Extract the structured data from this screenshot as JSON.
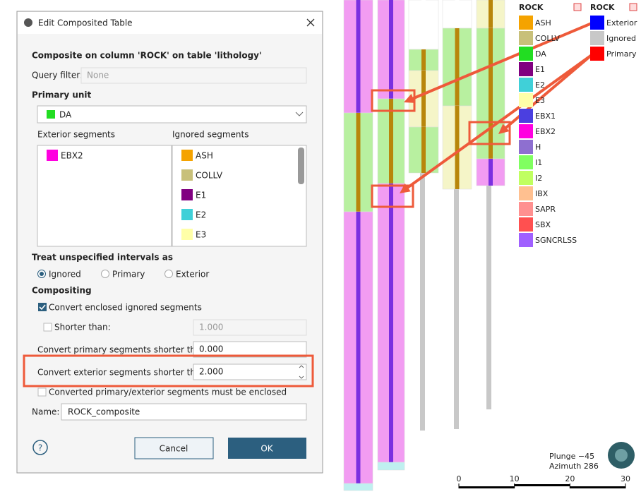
{
  "dialog": {
    "title": "Edit Composited Table",
    "heading": "Composite on column 'ROCK' on table 'lithology'",
    "query_filter": {
      "label": "Query filter:",
      "placeholder": "None"
    },
    "primary_unit": {
      "label": "Primary unit",
      "value": "DA",
      "color": "#22dd22"
    },
    "exterior_segments": {
      "label": "Exterior segments",
      "items": [
        {
          "label": "EBX2",
          "color": "#ff00e0"
        }
      ]
    },
    "ignored_segments": {
      "label": "Ignored segments",
      "items": [
        {
          "label": "ASH",
          "color": "#f5a300"
        },
        {
          "label": "COLLV",
          "color": "#c8c07a"
        },
        {
          "label": "E1",
          "color": "#800080"
        },
        {
          "label": "E2",
          "color": "#40d0d8"
        },
        {
          "label": "E3",
          "color": "#ffffa8"
        }
      ]
    },
    "treat_label": "Treat unspecified intervals as",
    "treat_options": [
      "Ignored",
      "Primary",
      "Exterior"
    ],
    "compositing_label": "Compositing",
    "convert_enclosed": "Convert enclosed ignored segments",
    "shorter_than": {
      "label": "Shorter than:",
      "value": "1.000"
    },
    "convert_primary": {
      "label": "Convert primary segments shorter than:",
      "value": "0.000"
    },
    "convert_exterior": {
      "label": "Convert exterior segments shorter than:",
      "value": "2.000"
    },
    "must_be_enclosed": "Converted primary/exterior segments must be enclosed",
    "name": {
      "label": "Name:",
      "value": "ROCK_composite"
    },
    "help": "?",
    "cancel": "Cancel",
    "ok": "OK"
  },
  "legend_rock": {
    "title": "ROCK",
    "items": [
      {
        "label": "ASH",
        "color": "#f5a300"
      },
      {
        "label": "COLLV",
        "color": "#c8c07a"
      },
      {
        "label": "DA",
        "color": "#22dd22"
      },
      {
        "label": "E1",
        "color": "#800080"
      },
      {
        "label": "E2",
        "color": "#40d0d8"
      },
      {
        "label": "E3",
        "color": "#ffffa8"
      },
      {
        "label": "EBX1",
        "color": "#4b3fe0"
      },
      {
        "label": "EBX2",
        "color": "#ff00e0"
      },
      {
        "label": "H",
        "color": "#8e6fd0"
      },
      {
        "label": "I1",
        "color": "#80ff60"
      },
      {
        "label": "I2",
        "color": "#c0ff60"
      },
      {
        "label": "IBX",
        "color": "#ffc090"
      },
      {
        "label": "SAPR",
        "color": "#ff9090"
      },
      {
        "label": "SBX",
        "color": "#ff5050"
      },
      {
        "label": "SGNCRLSS",
        "color": "#a060ff"
      }
    ]
  },
  "legend_composite": {
    "title": "ROCK",
    "items": [
      {
        "label": "Exterior",
        "color": "#0000ff"
      },
      {
        "label": "Ignored",
        "color": "#c8c8c8"
      },
      {
        "label": "Primary",
        "color": "#ff0000"
      }
    ]
  },
  "view": {
    "plunge": "Plunge −45",
    "azimuth": "Azimuth 286",
    "scale_ticks": [
      0,
      10,
      20,
      30
    ]
  }
}
